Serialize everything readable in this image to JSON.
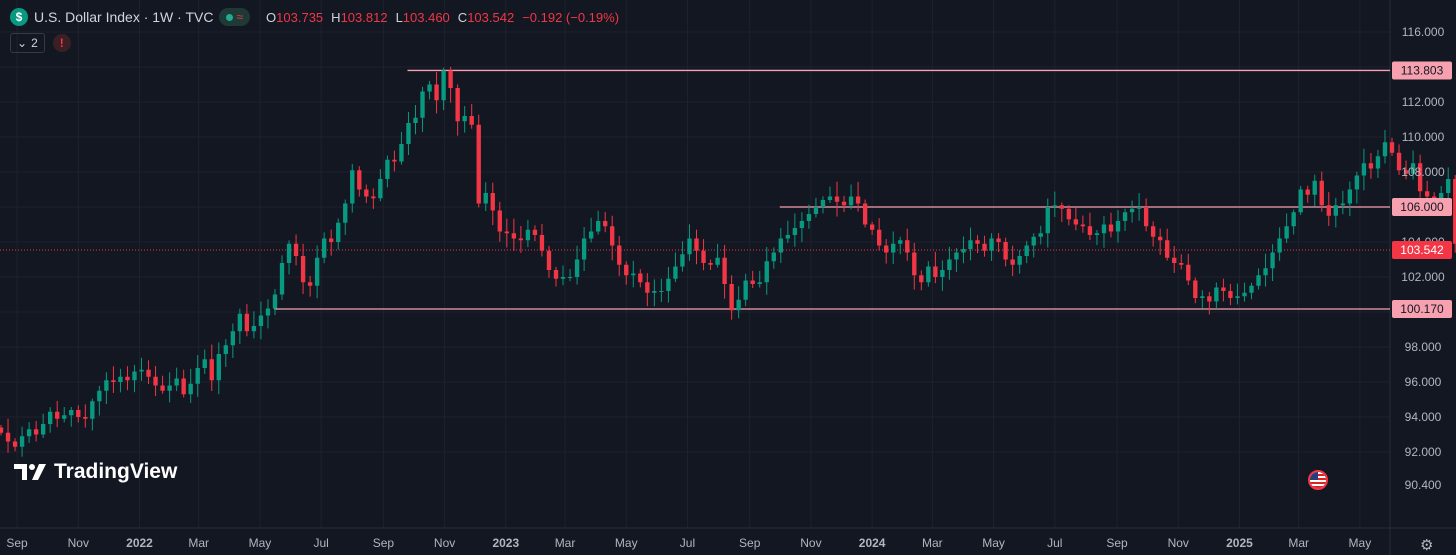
{
  "symbol": {
    "icon": "dollar-icon",
    "icon_glyph": "$",
    "title": "U.S. Dollar Index · 1W · TVC",
    "wave_glyph": "≈",
    "ohlc": {
      "o_label": "O",
      "o": "103.735",
      "h_label": "H",
      "h": "103.812",
      "l_label": "L",
      "l": "103.460",
      "c_label": "C",
      "c": "103.542",
      "change": "−0.192 (−0.19%)"
    }
  },
  "controls": {
    "indicators_count": "2",
    "warning_glyph": "!"
  },
  "brand": {
    "logo": "TradingView"
  },
  "colors": {
    "background": "#131722",
    "up": "#089981",
    "down": "#f23645",
    "level": "#f7a1b0",
    "text": "#b2b5be",
    "grid": "#1e222d"
  },
  "chart_data": {
    "type": "candlestick",
    "timeframe": "1W",
    "ylim": [
      90.0,
      116.3
    ],
    "y_ticks": [
      92,
      94,
      96,
      98,
      100,
      102,
      104,
      106,
      108,
      110,
      112,
      114,
      116
    ],
    "x_range": [
      "2021-08-15",
      "2025-05-31"
    ],
    "x_ticks": [
      {
        "label": "Sep",
        "date": "2021-09-01",
        "bold": false
      },
      {
        "label": "Nov",
        "date": "2021-11-01",
        "bold": false
      },
      {
        "label": "2022",
        "date": "2022-01-01",
        "bold": true
      },
      {
        "label": "Mar",
        "date": "2022-03-01",
        "bold": false
      },
      {
        "label": "May",
        "date": "2022-05-01",
        "bold": false
      },
      {
        "label": "Jul",
        "date": "2022-07-01",
        "bold": false
      },
      {
        "label": "Sep",
        "date": "2022-09-01",
        "bold": false
      },
      {
        "label": "Nov",
        "date": "2022-11-01",
        "bold": false
      },
      {
        "label": "2023",
        "date": "2023-01-01",
        "bold": true
      },
      {
        "label": "Mar",
        "date": "2023-03-01",
        "bold": false
      },
      {
        "label": "May",
        "date": "2023-05-01",
        "bold": false
      },
      {
        "label": "Jul",
        "date": "2023-07-01",
        "bold": false
      },
      {
        "label": "Sep",
        "date": "2023-09-01",
        "bold": false
      },
      {
        "label": "Nov",
        "date": "2023-11-01",
        "bold": false
      },
      {
        "label": "2024",
        "date": "2024-01-01",
        "bold": true
      },
      {
        "label": "Mar",
        "date": "2024-03-01",
        "bold": false
      },
      {
        "label": "May",
        "date": "2024-05-01",
        "bold": false
      },
      {
        "label": "Jul",
        "date": "2024-07-01",
        "bold": false
      },
      {
        "label": "Sep",
        "date": "2024-09-01",
        "bold": false
      },
      {
        "label": "Nov",
        "date": "2024-11-01",
        "bold": false
      },
      {
        "label": "2025",
        "date": "2025-01-01",
        "bold": true
      },
      {
        "label": "Mar",
        "date": "2025-03-01",
        "bold": false
      },
      {
        "label": "May",
        "date": "2025-05-01",
        "bold": false
      }
    ],
    "bottom_labels": [
      "90.400",
      "92.000"
    ],
    "levels": [
      {
        "value": 113.803,
        "label": "113.803",
        "start": "2022-09-25"
      },
      {
        "value": 106.0,
        "label": "106.000",
        "start": "2023-10-01"
      },
      {
        "value": 100.17,
        "label": "100.170",
        "start": "2022-05-15"
      }
    ],
    "last_price": {
      "value": 103.542,
      "label": "103.542"
    },
    "start_date": "2021-08-16",
    "closes": [
      93.1,
      92.6,
      92.3,
      92.9,
      93.3,
      93.0,
      93.6,
      94.3,
      93.9,
      94.1,
      94.4,
      94.0,
      93.9,
      94.9,
      95.5,
      96.1,
      96.0,
      96.3,
      96.1,
      96.6,
      96.7,
      96.3,
      95.8,
      95.5,
      95.8,
      96.2,
      95.3,
      95.9,
      96.8,
      97.3,
      96.1,
      97.6,
      98.1,
      98.9,
      99.9,
      98.9,
      99.2,
      99.8,
      100.2,
      101.0,
      102.8,
      103.9,
      103.2,
      101.7,
      101.5,
      103.1,
      104.2,
      104.0,
      105.1,
      106.2,
      108.1,
      107.0,
      106.6,
      106.5,
      107.6,
      108.7,
      108.6,
      109.6,
      110.8,
      111.1,
      112.6,
      113.0,
      112.1,
      113.8,
      112.8,
      110.9,
      111.2,
      110.7,
      106.2,
      106.8,
      105.8,
      104.6,
      104.5,
      104.2,
      104.1,
      104.7,
      104.4,
      103.5,
      102.4,
      101.9,
      102.0,
      102.0,
      103.0,
      104.2,
      104.6,
      105.2,
      104.9,
      103.8,
      102.7,
      102.1,
      102.2,
      101.7,
      101.1,
      101.2,
      101.2,
      101.9,
      102.6,
      103.3,
      104.2,
      103.5,
      102.8,
      102.7,
      103.1,
      101.6,
      100.1,
      100.7,
      101.8,
      101.6,
      101.7,
      102.9,
      103.4,
      104.2,
      104.4,
      104.8,
      105.2,
      105.6,
      106.0,
      106.4,
      106.6,
      106.3,
      106.1,
      106.6,
      106.2,
      105.0,
      104.7,
      103.8,
      103.4,
      103.9,
      104.1,
      103.4,
      102.1,
      101.7,
      102.6,
      102.0,
      102.4,
      103.0,
      103.4,
      103.6,
      104.1,
      103.9,
      103.5,
      104.2,
      104.0,
      103.0,
      102.7,
      103.2,
      103.8,
      104.3,
      104.5,
      106.0,
      106.1,
      105.9,
      105.3,
      105.0,
      104.9,
      104.4,
      104.5,
      105.0,
      104.6,
      105.2,
      105.7,
      105.9,
      106.0,
      104.9,
      104.3,
      104.1,
      103.1,
      102.8,
      102.7,
      101.8,
      100.8,
      100.9,
      100.6,
      101.4,
      101.2,
      100.8,
      100.9,
      101.1,
      101.5,
      102.1,
      102.5,
      103.4,
      104.2,
      104.9,
      105.7,
      107.0,
      106.7,
      107.5,
      106.1,
      105.5,
      106.1,
      106.2,
      107.0,
      107.8,
      108.5,
      108.2,
      108.9,
      109.7,
      109.1,
      108.1,
      107.9,
      108.5,
      106.9,
      106.6,
      106.4,
      106.8,
      107.6,
      103.9,
      103.7,
      103.5
    ]
  }
}
